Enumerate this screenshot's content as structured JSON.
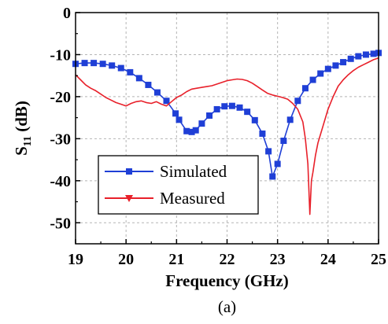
{
  "chart_data": {
    "type": "line",
    "title": "",
    "xlabel": "Frequency (GHz)",
    "ylabel_main": "S",
    "ylabel_sub": "11",
    "ylabel_unit": " (dB)",
    "caption": "(a)",
    "xlim": [
      19,
      25
    ],
    "ylim": [
      -55,
      0
    ],
    "xticks": [
      "19",
      "20",
      "21",
      "22",
      "23",
      "24",
      "25"
    ],
    "yticks": [
      "0",
      "-10",
      "-20",
      "-30",
      "-40",
      "-50"
    ],
    "grid": true,
    "legend_position": "bottom-left",
    "series": [
      {
        "name": "Simulated",
        "color": "#1f3fd6",
        "marker": "square",
        "x": [
          19.0,
          19.18,
          19.36,
          19.54,
          19.72,
          19.9,
          20.08,
          20.26,
          20.44,
          20.62,
          20.8,
          20.98,
          21.05,
          21.2,
          21.3,
          21.38,
          21.5,
          21.65,
          21.8,
          21.95,
          22.1,
          22.25,
          22.4,
          22.55,
          22.7,
          22.82,
          22.9,
          23.0,
          23.12,
          23.25,
          23.4,
          23.55,
          23.7,
          23.85,
          24.0,
          24.15,
          24.3,
          24.45,
          24.6,
          24.75,
          24.9,
          25.0
        ],
        "y": [
          -12.2,
          -12.0,
          -12.0,
          -12.2,
          -12.6,
          -13.2,
          -14.2,
          -15.6,
          -17.2,
          -19.0,
          -21.0,
          -24.0,
          -25.5,
          -28.2,
          -28.4,
          -28.0,
          -26.4,
          -24.5,
          -23.0,
          -22.3,
          -22.2,
          -22.6,
          -23.6,
          -25.6,
          -28.8,
          -33.0,
          -39.0,
          -36.0,
          -30.5,
          -25.5,
          -21.0,
          -18.0,
          -16.0,
          -14.5,
          -13.4,
          -12.6,
          -11.8,
          -11.0,
          -10.4,
          -10.0,
          -9.8,
          -9.6
        ]
      },
      {
        "name": "Measured",
        "color": "#e8202a",
        "marker": "triangle-down",
        "x": [
          19.0,
          19.1,
          19.2,
          19.3,
          19.4,
          19.5,
          19.6,
          19.7,
          19.8,
          19.9,
          20.0,
          20.1,
          20.2,
          20.3,
          20.4,
          20.5,
          20.6,
          20.7,
          20.8,
          20.9,
          21.0,
          21.1,
          21.2,
          21.3,
          21.4,
          21.5,
          21.6,
          21.7,
          21.8,
          21.9,
          22.0,
          22.1,
          22.2,
          22.3,
          22.4,
          22.5,
          22.6,
          22.7,
          22.8,
          22.9,
          23.0,
          23.1,
          23.2,
          23.3,
          23.4,
          23.5,
          23.55,
          23.6,
          23.64,
          23.67,
          23.7,
          23.75,
          23.8,
          23.85,
          23.9,
          24.0,
          24.1,
          24.2,
          24.3,
          24.4,
          24.5,
          24.6,
          24.7,
          24.8,
          24.9,
          25.0
        ],
        "y": [
          -14.8,
          -16.0,
          -17.2,
          -18.0,
          -18.6,
          -19.4,
          -20.2,
          -20.8,
          -21.4,
          -21.8,
          -22.2,
          -21.6,
          -21.2,
          -21.0,
          -21.4,
          -21.6,
          -21.2,
          -21.8,
          -22.2,
          -21.2,
          -20.2,
          -19.6,
          -18.8,
          -18.2,
          -18.0,
          -17.8,
          -17.6,
          -17.4,
          -17.0,
          -16.6,
          -16.2,
          -16.0,
          -15.8,
          -15.9,
          -16.2,
          -16.8,
          -17.6,
          -18.4,
          -19.2,
          -19.6,
          -19.9,
          -20.2,
          -20.6,
          -21.6,
          -23.0,
          -26.0,
          -30.0,
          -36.0,
          -48.0,
          -40.0,
          -38.0,
          -34.0,
          -31.0,
          -29.0,
          -27.0,
          -23.0,
          -20.0,
          -17.5,
          -16.0,
          -14.8,
          -13.8,
          -13.0,
          -12.4,
          -11.8,
          -11.2,
          -10.8
        ]
      }
    ]
  }
}
